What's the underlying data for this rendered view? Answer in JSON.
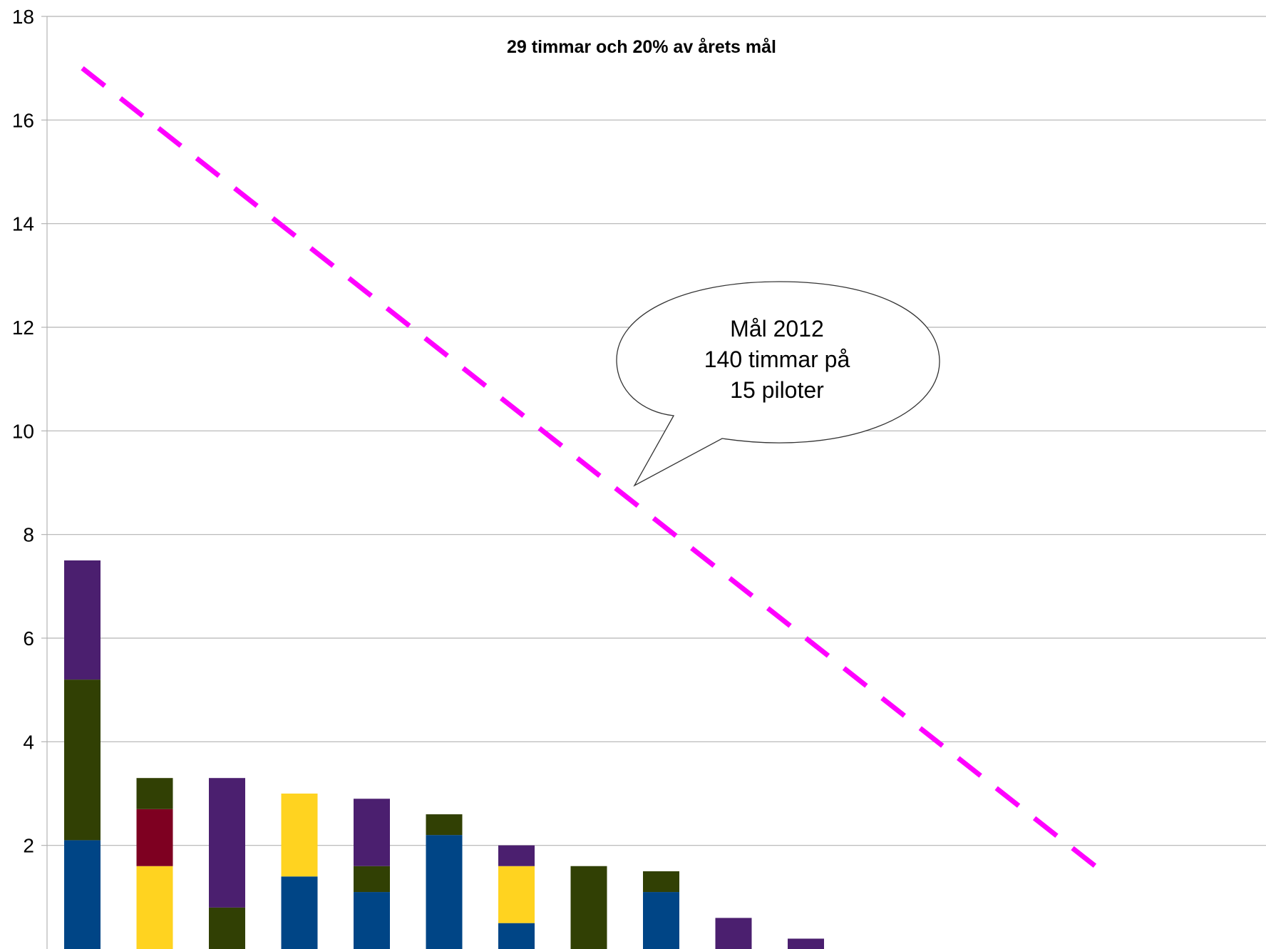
{
  "chart_data": {
    "type": "bar",
    "title": "",
    "subtitle": "29 timmar och 20% av årets mål",
    "ylim": [
      0,
      18
    ],
    "yticks": [
      2,
      4,
      6,
      8,
      10,
      12,
      14,
      16,
      18
    ],
    "grid": true,
    "stacked": true,
    "categories": [
      "",
      "",
      "",
      "",
      "",
      "",
      "",
      "",
      "",
      "",
      "",
      "",
      "",
      "",
      ""
    ],
    "series": [
      {
        "color": "#004586",
        "values": [
          2.1,
          0,
          0,
          1.4,
          1.1,
          2.2,
          0.5,
          0,
          1.1,
          0,
          0,
          0,
          0,
          0,
          0
        ]
      },
      {
        "color": "#ffd320",
        "values": [
          0,
          1.6,
          0,
          1.6,
          0,
          0,
          1.1,
          0,
          0,
          0,
          0,
          0,
          0,
          0,
          0
        ]
      },
      {
        "color": "#7e0021",
        "values": [
          0,
          1.1,
          0,
          0,
          0,
          0,
          0,
          0,
          0,
          0,
          0,
          0,
          0,
          0,
          0
        ]
      },
      {
        "color": "#314004",
        "values": [
          3.1,
          0.6,
          0.8,
          0,
          0.5,
          0.4,
          0,
          1.6,
          0.4,
          0,
          0,
          0,
          0,
          0,
          0
        ]
      },
      {
        "color": "#4b1f6f",
        "values": [
          2.3,
          0,
          2.5,
          0,
          1.3,
          0,
          0.4,
          0,
          0,
          0.6,
          0.2,
          0,
          0,
          0,
          0
        ]
      }
    ],
    "target_line": {
      "color": "#ff00ff",
      "start": [
        1,
        17
      ],
      "end": [
        15,
        1.6
      ]
    },
    "annotation": {
      "lines": [
        "Mål 2012",
        "140 timmar på",
        "15 piloter"
      ]
    }
  }
}
